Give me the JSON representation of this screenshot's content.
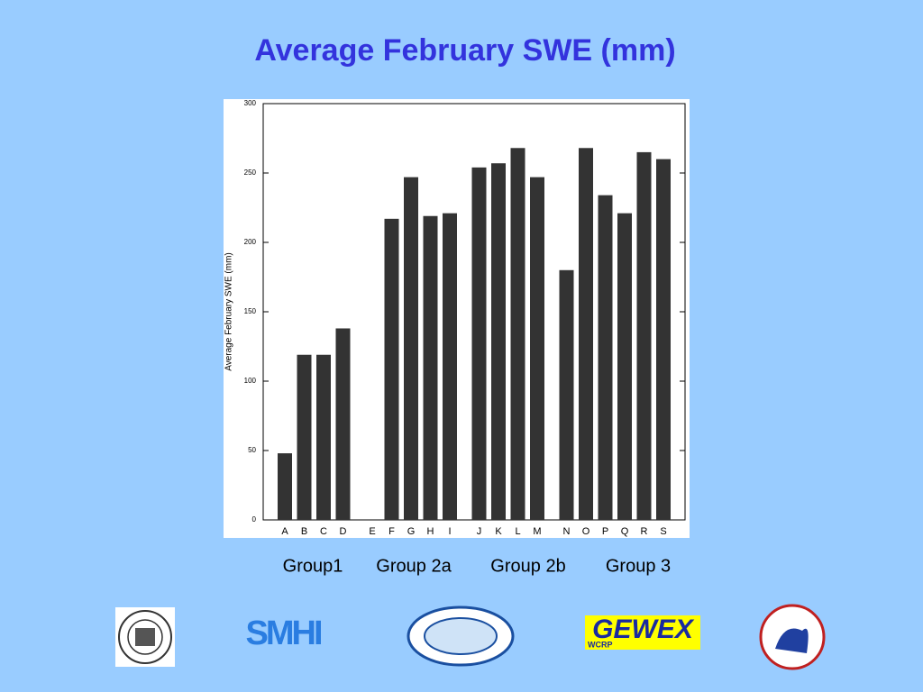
{
  "chart_data": {
    "type": "bar",
    "title": "Average February SWE (mm)",
    "y_label": "Average February SWE (mm)",
    "categories": [
      "A",
      "B",
      "C",
      "D",
      "E",
      "F",
      "G",
      "H",
      "I",
      "J",
      "K",
      "L",
      "M",
      "N",
      "O",
      "P",
      "Q",
      "R",
      "S"
    ],
    "values": [
      48,
      119,
      119,
      138,
      null,
      217,
      247,
      219,
      221,
      254,
      257,
      268,
      247,
      180,
      268,
      234,
      221,
      265,
      260
    ],
    "color": "#333333",
    "ylim": [
      0,
      300
    ],
    "yticks": [
      0,
      50,
      100,
      150,
      200,
      250,
      300
    ],
    "groups": [
      "Group1",
      "Group 2a",
      "Group 2b",
      "Group 3"
    ]
  },
  "logos": {
    "smhi": "SMHI",
    "gewex": "GEWEX",
    "wcrp": "WCRP"
  }
}
